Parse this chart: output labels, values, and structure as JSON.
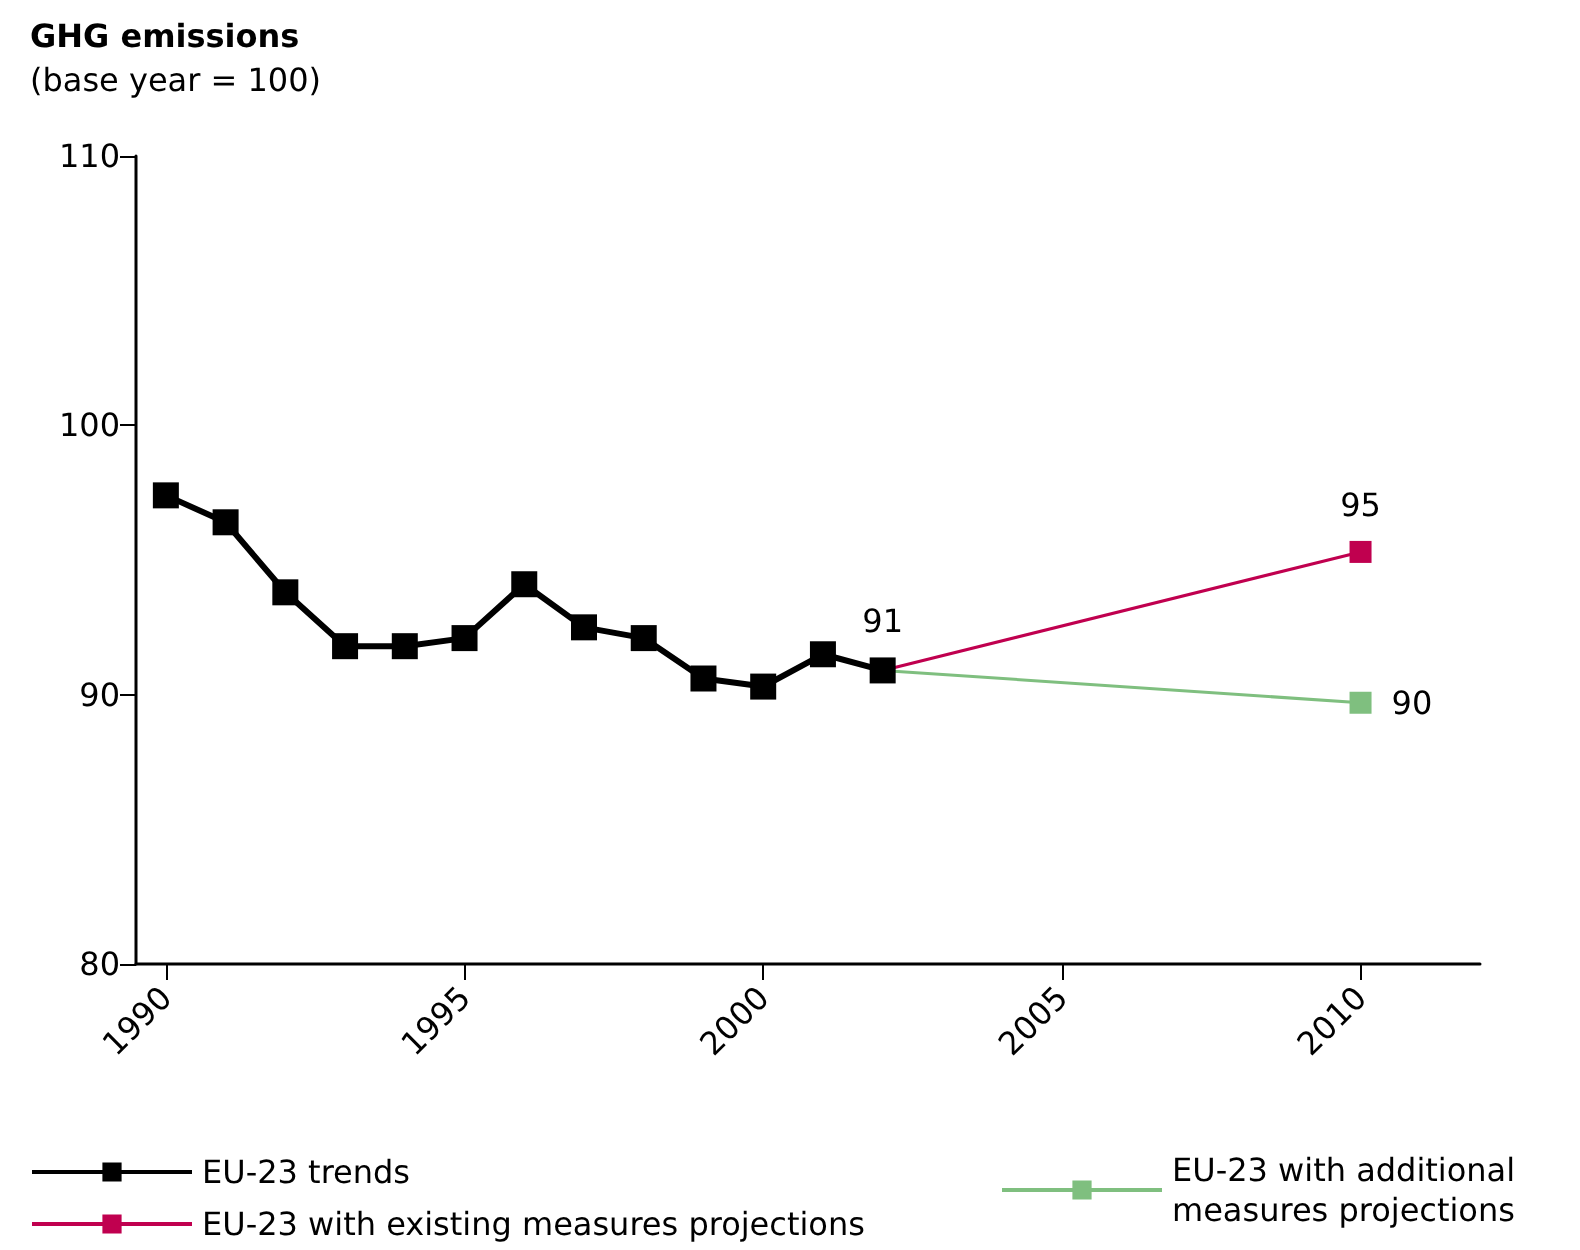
{
  "chart_data": {
    "type": "line",
    "title": "GHG emissions",
    "subtitle": "(base year = 100)",
    "xlim": [
      1989.5,
      2012
    ],
    "xticks": [
      1990,
      1995,
      2000,
      2005,
      2010
    ],
    "ylim": [
      80,
      110
    ],
    "yticks": [
      80,
      90,
      100,
      110
    ],
    "series": [
      {
        "name": "EU-23 with existing measures projections",
        "color": "#c0004f",
        "x": [
          2002,
          2010
        ],
        "values": [
          90.9,
          95.3
        ],
        "value_labels": [
          null,
          "95"
        ]
      },
      {
        "name": "EU-23 with additional measures projections",
        "color": "#7fbf7f",
        "x": [
          2002,
          2010
        ],
        "values": [
          90.9,
          89.7
        ],
        "value_labels": [
          null,
          "90"
        ]
      },
      {
        "name": "EU-23 trends",
        "color": "#000000",
        "x": [
          1990,
          1991,
          1992,
          1993,
          1994,
          1995,
          1996,
          1997,
          1998,
          1999,
          2000,
          2001,
          2002
        ],
        "values": [
          97.4,
          96.4,
          93.8,
          91.8,
          91.8,
          92.1,
          94.1,
          92.5,
          92.1,
          90.6,
          90.3,
          91.5,
          90.9
        ],
        "value_labels": [
          null,
          null,
          null,
          null,
          null,
          null,
          null,
          null,
          null,
          null,
          null,
          null,
          "91"
        ]
      }
    ],
    "marker": "square",
    "grid": false,
    "legend": "bottom"
  }
}
